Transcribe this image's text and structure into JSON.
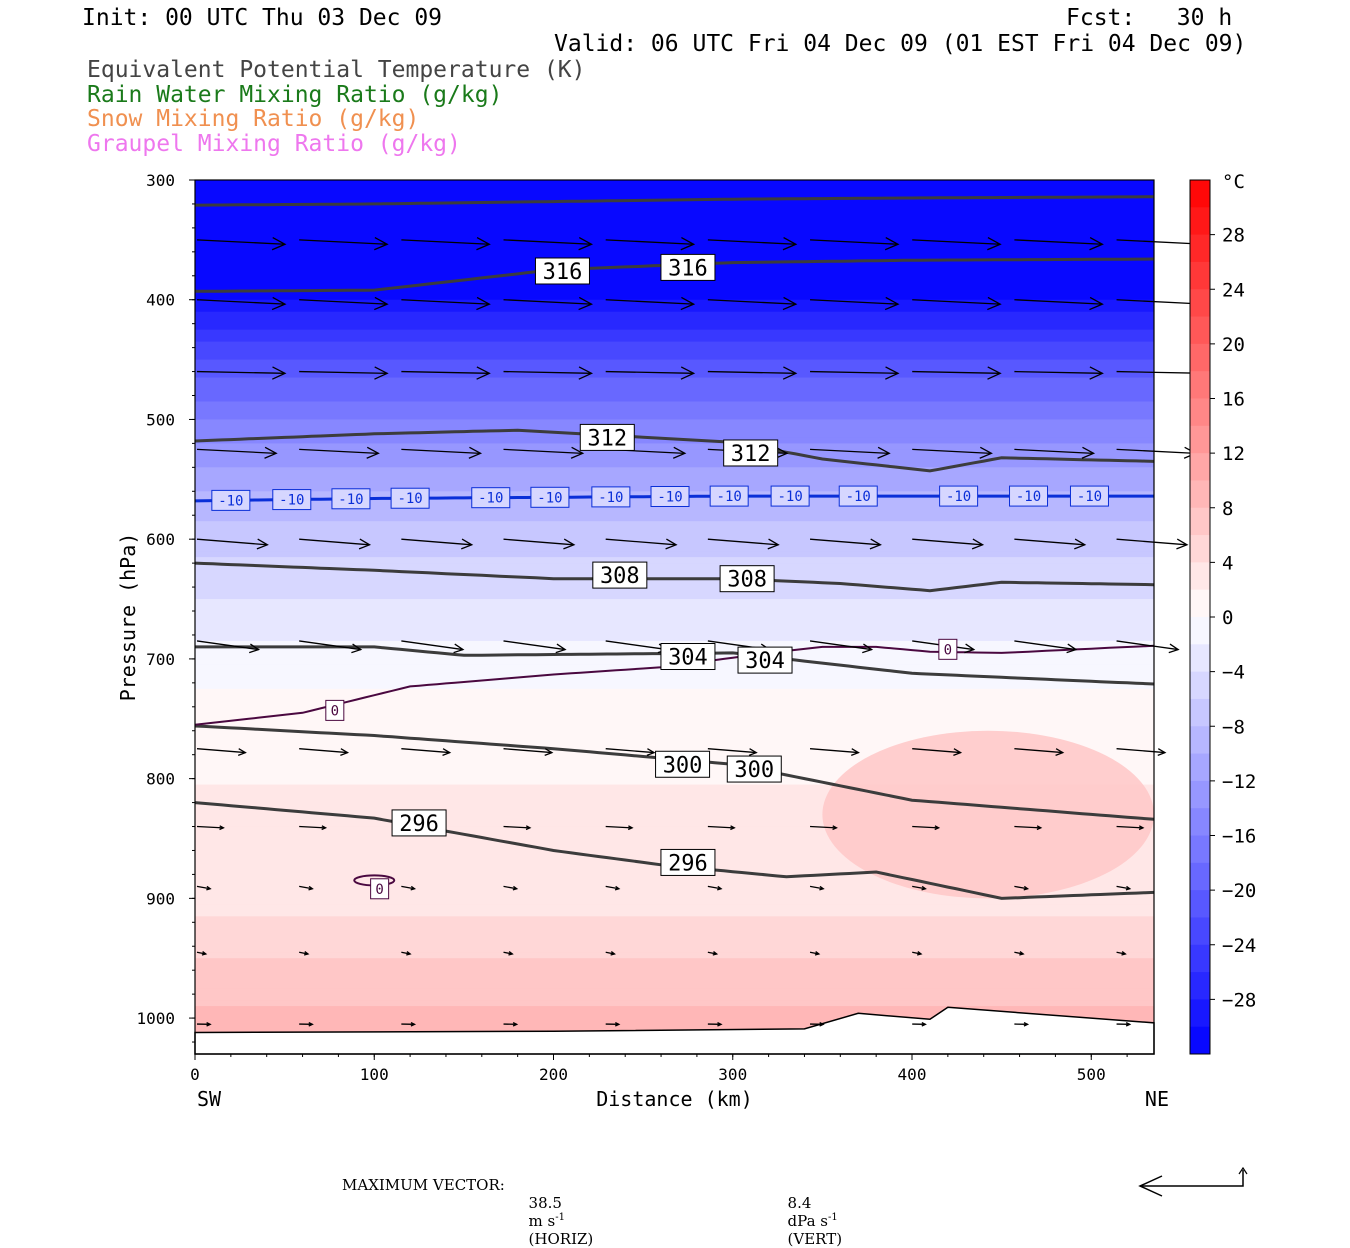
{
  "header": {
    "init": "Init: 00 UTC Thu 03 Dec 09",
    "fcst": "Fcst:   30 h",
    "valid": "Valid: 06 UTC Fri 04 Dec 09 (01 EST Fri 04 Dec 09)"
  },
  "legend": [
    {
      "label": "Equivalent Potential Temperature (K)",
      "color": "#444444"
    },
    {
      "label": "Rain Water Mixing Ratio (g/kg)",
      "color": "#1a7a1a"
    },
    {
      "label": "Snow Mixing Ratio (g/kg)",
      "color": "#f09050"
    },
    {
      "label": "Graupel Mixing Ratio (g/kg)",
      "color": "#ee77ee"
    }
  ],
  "chart_data": {
    "type": "heatmap",
    "title": "",
    "xlabel": "Distance (km)",
    "ylabel": "Pressure (hPa)",
    "xlim": [
      0,
      535
    ],
    "ylim": [
      1030,
      300
    ],
    "x_ticks": [
      0,
      100,
      200,
      300,
      400,
      500
    ],
    "y_ticks": [
      300,
      400,
      500,
      600,
      700,
      800,
      900,
      1000
    ],
    "x_endpoints": {
      "left": "SW",
      "right": "NE"
    },
    "colorbar": {
      "unit": "°C",
      "ticks": [
        28,
        24,
        20,
        16,
        12,
        8,
        4,
        0,
        -4,
        -8,
        -12,
        -16,
        -20,
        -24,
        -28
      ],
      "range": [
        -32,
        32
      ],
      "step": 2
    },
    "temperature_profile_c": [
      {
        "p": 300,
        "t": -32
      },
      {
        "p": 400,
        "t": -30
      },
      {
        "p": 450,
        "t": -22
      },
      {
        "p": 500,
        "t": -16
      },
      {
        "p": 560,
        "t": -10
      },
      {
        "p": 600,
        "t": -7
      },
      {
        "p": 650,
        "t": -4
      },
      {
        "p": 700,
        "t": -1
      },
      {
        "p": 760,
        "t": 1.5
      },
      {
        "p": 900,
        "t": 3
      },
      {
        "p": 950,
        "t": 6
      },
      {
        "p": 1010,
        "t": 9
      }
    ],
    "warm_core": {
      "x": [
        350,
        535
      ],
      "p": [
        760,
        900
      ],
      "t_peak": 8
    },
    "theta_e_contours": [
      {
        "level": 320,
        "x": [
          0,
          100,
          200,
          300,
          400,
          535
        ],
        "p": [
          321,
          320,
          318,
          316,
          315,
          314
        ]
      },
      {
        "level": 316,
        "x": [
          0,
          100,
          200,
          300,
          400,
          535
        ],
        "p": [
          393,
          392,
          375,
          369,
          367,
          366
        ]
      },
      {
        "level": 312,
        "x": [
          0,
          100,
          180,
          300,
          350,
          410,
          450,
          535
        ],
        "p": [
          518,
          512,
          509,
          519,
          533,
          543,
          532,
          535
        ]
      },
      {
        "level": 308,
        "x": [
          0,
          100,
          200,
          300,
          360,
          410,
          450,
          535
        ],
        "p": [
          620,
          626,
          633,
          633,
          637,
          643,
          636,
          638
        ]
      },
      {
        "level": 304,
        "x": [
          0,
          100,
          150,
          300,
          400,
          535
        ],
        "p": [
          690,
          690,
          697,
          695,
          712,
          721
        ]
      },
      {
        "level": 300,
        "x": [
          0,
          100,
          200,
          300,
          400,
          535
        ],
        "p": [
          756,
          764,
          775,
          788,
          818,
          834
        ]
      },
      {
        "level": 296,
        "x": [
          0,
          100,
          200,
          260,
          330,
          380,
          450,
          535
        ],
        "p": [
          820,
          833,
          860,
          872,
          882,
          878,
          900,
          895
        ]
      }
    ],
    "theta_e_labels": [
      {
        "text": "316",
        "x": 205,
        "p": 376
      },
      {
        "text": "316",
        "x": 275,
        "p": 373
      },
      {
        "text": "312",
        "x": 230,
        "p": 515
      },
      {
        "text": "312",
        "x": 310,
        "p": 528
      },
      {
        "text": "308",
        "x": 237,
        "p": 630
      },
      {
        "text": "308",
        "x": 308,
        "p": 633
      },
      {
        "text": "304",
        "x": 275,
        "p": 698
      },
      {
        "text": "304",
        "x": 318,
        "p": 701
      },
      {
        "text": "300",
        "x": 272,
        "p": 788
      },
      {
        "text": "300",
        "x": 312,
        "p": 792
      },
      {
        "text": "296",
        "x": 125,
        "p": 837
      },
      {
        "text": "296",
        "x": 275,
        "p": 870
      }
    ],
    "isotherm_minus10": {
      "level": -10,
      "x": [
        0,
        100,
        200,
        300,
        400,
        535
      ],
      "p": [
        568,
        566,
        565,
        564,
        564,
        564
      ],
      "labels": [
        {
          "text": "-10",
          "x": 20
        },
        {
          "text": "-10",
          "x": 54
        },
        {
          "text": "-10",
          "x": 87
        },
        {
          "text": "-10",
          "x": 120
        },
        {
          "text": "-10",
          "x": 165
        },
        {
          "text": "-10",
          "x": 198
        },
        {
          "text": "-10",
          "x": 232
        },
        {
          "text": "-10",
          "x": 265
        },
        {
          "text": "-10",
          "x": 298
        },
        {
          "text": "-10",
          "x": 332
        },
        {
          "text": "-10",
          "x": 370
        },
        {
          "text": "-10",
          "x": 426
        },
        {
          "text": "-10",
          "x": 465
        },
        {
          "text": "-10",
          "x": 499
        }
      ]
    },
    "isotherm_zero": {
      "level": 0,
      "x": [
        0,
        60,
        120,
        200,
        260,
        320,
        350,
        380,
        410,
        450,
        535
      ],
      "p": [
        755,
        745,
        723,
        713,
        707,
        695,
        690,
        690,
        694,
        695,
        689
      ],
      "labels": [
        {
          "text": "0",
          "x": 78,
          "p": 743
        },
        {
          "text": "0",
          "x": 420,
          "p": 692
        },
        {
          "text": "0",
          "x": 103,
          "p": 892
        }
      ]
    },
    "wind_vectors": [
      {
        "p": 350,
        "u": 1,
        "v": 0.05
      },
      {
        "p": 400,
        "u": 1,
        "v": 0.05
      },
      {
        "p": 460,
        "u": 1,
        "v": 0.02
      },
      {
        "p": 525,
        "u": 0.9,
        "v": 0.05
      },
      {
        "p": 600,
        "u": 0.8,
        "v": 0.08
      },
      {
        "p": 685,
        "u": 0.7,
        "v": 0.14
      },
      {
        "p": 775,
        "u": 0.55,
        "v": 0.08
      },
      {
        "p": 840,
        "u": 0.3,
        "v": 0.05
      },
      {
        "p": 890,
        "u": 0.15,
        "v": 0.18
      },
      {
        "p": 945,
        "u": 0.1,
        "v": 0.2
      },
      {
        "p": 1005,
        "u": 0.15,
        "v": 0.02
      }
    ],
    "max_vector": {
      "horiz": "38.5",
      "vert": "8.4"
    }
  },
  "footer": {
    "label": "MAXIMUM VECTOR:",
    "horiz_unit": "m s",
    "horiz_tag": "(HORIZ)",
    "vert_unit": "dPa s",
    "vert_tag": "(VERT)",
    "exp": "-1"
  }
}
